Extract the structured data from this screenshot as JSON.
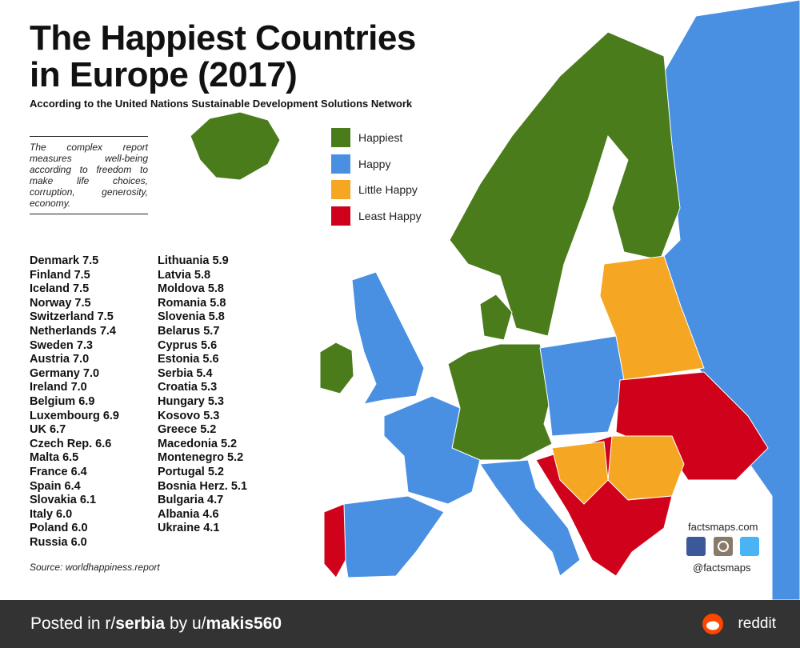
{
  "header": {
    "title_line1": "The Happiest Countries",
    "title_line2": "in Europe (2017)",
    "subtitle": "According to the United Nations Sustainable Development Solutions Network"
  },
  "note": "The complex report measures well-being according to freedom to make life choices, corruption, generosity, economy.",
  "legend": [
    {
      "label": "Happiest",
      "color": "#4a7c1c"
    },
    {
      "label": "Happy",
      "color": "#4a90e2"
    },
    {
      "label": "Little Happy",
      "color": "#f5a623"
    },
    {
      "label": "Least Happy",
      "color": "#d0021b"
    }
  ],
  "ranking": {
    "column1": [
      "Denmark 7.5",
      "Finland 7.5",
      "Iceland 7.5",
      "Norway 7.5",
      "Switzerland 7.5",
      "Netherlands 7.4",
      "Sweden 7.3",
      "Austria 7.0",
      "Germany 7.0",
      "Ireland 7.0",
      "Belgium 6.9",
      "Luxembourg 6.9",
      "UK 6.7",
      "Czech Rep. 6.6",
      "Malta 6.5",
      "France 6.4",
      "Spain 6.4",
      "Slovakia 6.1",
      "Italy 6.0",
      "Poland 6.0",
      "Russia 6.0"
    ],
    "column2": [
      "Lithuania 5.9",
      "Latvia 5.8",
      "Moldova 5.8",
      "Romania 5.8",
      "Slovenia 5.8",
      "Belarus 5.7",
      "Cyprus 5.6",
      "Estonia 5.6",
      "Serbia 5.4",
      "Croatia 5.3",
      "Hungary 5.3",
      "Kosovo 5.3",
      "Greece 5.2",
      "Macedonia 5.2",
      "Montenegro 5.2",
      "Portugal 5.2",
      "Bosnia Herz. 5.1",
      "Bulgaria 4.7",
      "Albania 4.6",
      "Ukraine 4.1"
    ]
  },
  "source": "Source: worldhappiness.report",
  "credits": {
    "site": "factsmaps.com",
    "handle": "@factsmaps"
  },
  "footer": {
    "prefix": "Posted in r/",
    "subreddit": "serbia",
    "middle": " by u/",
    "user": "makis560",
    "brand": "reddit"
  }
}
